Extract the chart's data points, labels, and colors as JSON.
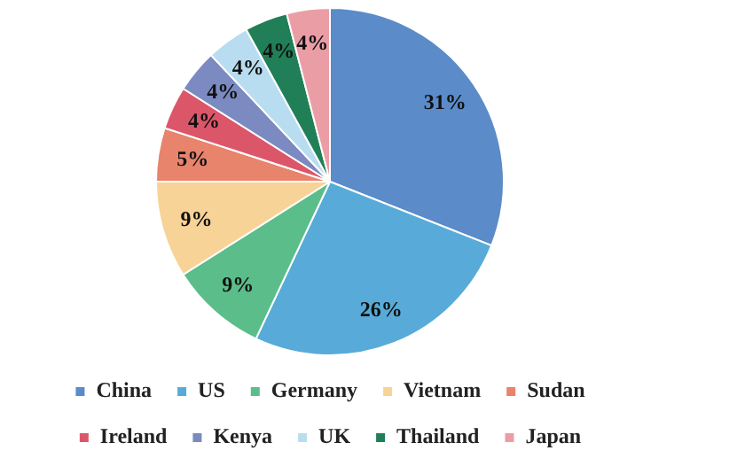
{
  "chart_data": {
    "type": "pie",
    "categories": [
      "China",
      "US",
      "Germany",
      "Vietnam",
      "Sudan",
      "Ireland",
      "Kenya",
      "UK",
      "Thailand",
      "Japan"
    ],
    "values": [
      31,
      26,
      9,
      9,
      5,
      4,
      4,
      4,
      4,
      4
    ],
    "value_labels": [
      "31%",
      "26%",
      "9%",
      "9%",
      "5%",
      "4%",
      "4%",
      "4%",
      "4%",
      "4%"
    ],
    "colors": [
      "#5b8bc9",
      "#58abd8",
      "#5bbd8a",
      "#f8d398",
      "#e8836c",
      "#dc566a",
      "#7b8ac0",
      "#b9ddf0",
      "#217f58",
      "#eb9da6"
    ],
    "legend": "bottom"
  }
}
